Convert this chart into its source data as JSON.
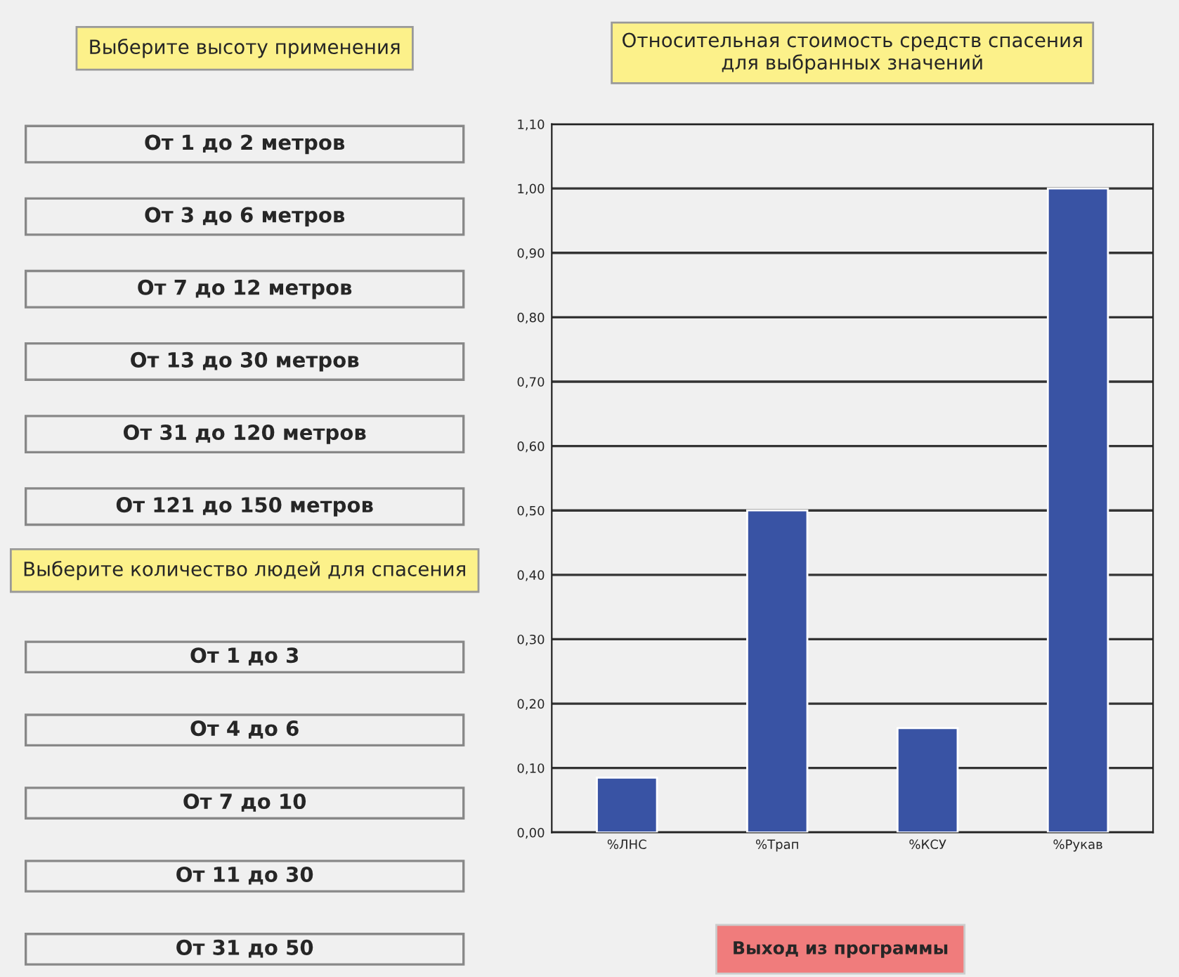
{
  "chart_data": [
    {
      "type": "other",
      "title": "Выберите высоту применения",
      "annotations": [
        "От 1 до 2 метров",
        "От 3 до 6 метров",
        "От 7 до 12 метров",
        "От 13 до 30 метров",
        "От 31 до 120 метров",
        "От 121 до 150 метров"
      ]
    },
    {
      "type": "other",
      "title": "Выберите количество людей для спасения",
      "annotations": [
        "От 1 до 3",
        "От 4 до 6",
        "От 7 до 10",
        "От 11 до 30",
        "От 31 до 50"
      ]
    },
    {
      "type": "bar",
      "title": "Относительная стоимость средств спасения\nдля выбранных значений",
      "categories": [
        "%ЛНС",
        "%Трап",
        "%КСУ",
        "%Рукав"
      ],
      "values": [
        0.085,
        0.5,
        0.162,
        1.0
      ],
      "color": "#3953a4",
      "ylim": [
        0,
        1.1
      ],
      "yticks": [
        {
          "value": 0,
          "label": "0,00"
        },
        {
          "value": 0.1,
          "label": "0,10"
        },
        {
          "value": 0.2,
          "label": "0,20"
        },
        {
          "value": 0.3,
          "label": "0,30"
        },
        {
          "value": 0.4,
          "label": "0,40"
        },
        {
          "value": 0.5,
          "label": "0,50"
        },
        {
          "value": 0.6,
          "label": "0,60"
        },
        {
          "value": 0.7,
          "label": "0,70"
        },
        {
          "value": 0.8,
          "label": "0,80"
        },
        {
          "value": 0.9,
          "label": "0,90"
        },
        {
          "value": 1.0,
          "label": "1,00"
        },
        {
          "value": 1.1,
          "label": "1,10"
        }
      ],
      "grid": "y",
      "annotations": [
        "Выход из программы"
      ]
    }
  ]
}
